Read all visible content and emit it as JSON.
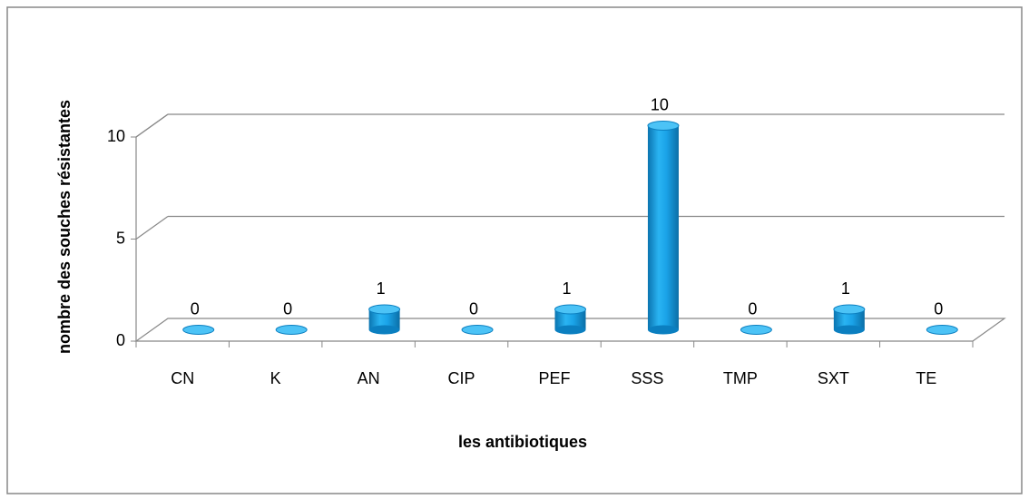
{
  "chart_data": {
    "type": "bar3d",
    "x_label": "les antibiotiques",
    "y_label": "nombre des souches résistantes",
    "categories": [
      "CN",
      "K",
      "AN",
      "CIP",
      "PEF",
      "SSS",
      "TMP",
      "SXT",
      "TE"
    ],
    "values": [
      0,
      0,
      1,
      0,
      1,
      10,
      0,
      1,
      0
    ],
    "color": "#1aa3e8",
    "ylim": [
      0,
      10
    ],
    "yticks": [
      0,
      5,
      10
    ],
    "grid": true
  }
}
